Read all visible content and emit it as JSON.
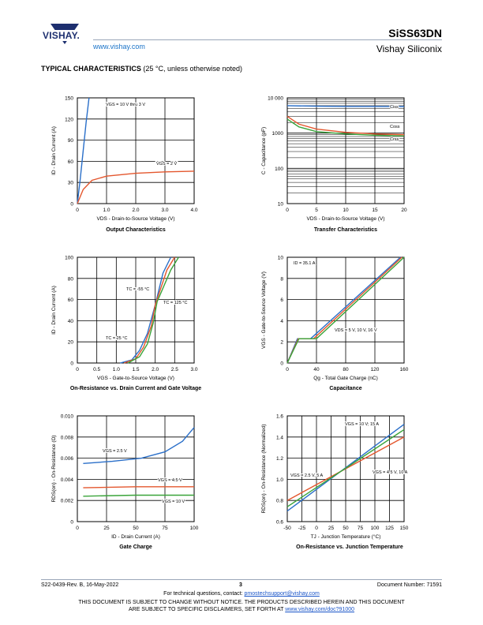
{
  "header": {
    "brand": "VISHAY.",
    "url": "www.vishay.com",
    "part_number": "SiSS63DN",
    "company": "Vishay Siliconix"
  },
  "section": {
    "title": "TYPICAL CHARACTERISTICS",
    "subtitle": "(25 °C, unless otherwise noted)"
  },
  "colors": {
    "blue": "#2a6fc9",
    "red": "#e4572e",
    "green": "#3aa43a",
    "orange": "#f0a030"
  },
  "charts": [
    {
      "id": "c1",
      "caption": "Output Characteristics",
      "xticks": [
        "0",
        "1.0",
        "2.0",
        "3.0",
        "4.0"
      ],
      "yticks": [
        "0",
        "30",
        "60",
        "90",
        "120",
        "150"
      ],
      "xlabel": "VDS - Drain-to-Source Voltage (V)",
      "ylabel": "ID - Drain Current (A)",
      "annotations": [
        "VGS = 10 V thru 3 V",
        "VGS = 2 V"
      ]
    },
    {
      "id": "c2",
      "caption": "Transfer Characteristics",
      "xticks": [
        "0",
        "5",
        "10",
        "15",
        "20"
      ],
      "yticks": [
        "10",
        "100",
        "1000",
        "10 000"
      ],
      "xlabel": "VDS - Drain-to-Source Voltage (V)",
      "ylabel": "C - Capacitance (pF)",
      "annotations": [
        "Ciss",
        "Coss",
        "Crss"
      ]
    },
    {
      "id": "c3",
      "caption": "On-Resistance vs. Drain Current and Gate Voltage",
      "xticks": [
        "0",
        "0.5",
        "1.0",
        "1.5",
        "2.0",
        "2.5",
        "3.0"
      ],
      "yticks": [
        "0",
        "20",
        "40",
        "60",
        "80",
        "100"
      ],
      "xlabel": "VGS - Gate-to-Source Voltage (V)",
      "ylabel": "ID - Drain Current (A)",
      "annotations": [
        "TC = -55 °C",
        "TC = 125 °C",
        "TC = 25 °C"
      ]
    },
    {
      "id": "c4",
      "caption": "Capacitance",
      "xticks": [
        "0",
        "40",
        "80",
        "120",
        "160"
      ],
      "yticks": [
        "0",
        "2",
        "4",
        "6",
        "8",
        "10"
      ],
      "xlabel": "Qg - Total Gate Charge (nC)",
      "ylabel": "VGS - Gate-to-Source Voltage (V)",
      "annotations": [
        "ID = 35.1 A",
        "VDS = 5 V, 10 V, 16 V"
      ]
    },
    {
      "id": "c5",
      "caption": "Gate Charge",
      "xticks": [
        "0",
        "25",
        "50",
        "75",
        "100"
      ],
      "yticks": [
        "0",
        "0.002",
        "0.004",
        "0.006",
        "0.008",
        "0.010"
      ],
      "xlabel": "ID - Drain Current (A)",
      "ylabel": "RDS(on) - On-Resistance (Ω)",
      "annotations": [
        "VGS = 2.5 V",
        "VGS = 4.5 V",
        "VGS = 10 V"
      ]
    },
    {
      "id": "c6",
      "caption": "On-Resistance vs. Junction Temperature",
      "xticks": [
        "-50",
        "-25",
        "0",
        "25",
        "50",
        "75",
        "100",
        "125",
        "150"
      ],
      "yticks": [
        "0.6",
        "0.8",
        "1.0",
        "1.2",
        "1.4",
        "1.6"
      ],
      "xlabel": "TJ - Junction Temperature (°C)",
      "ylabel": "RDS(on) - On-Resistance (Normalized)",
      "annotations": [
        "VGS = 10 V; 15 A",
        "VGS = 2.5 V, 5 A",
        "VGS = 4.5 V, 10 A"
      ]
    }
  ],
  "chart_data": [
    {
      "type": "line",
      "title": "Output Characteristics",
      "xlim": [
        0,
        4
      ],
      "ylim": [
        0,
        150
      ],
      "series": [
        {
          "name": "VGS = 10 V thru 3 V",
          "x": [
            0,
            0.1,
            0.2,
            0.3,
            0.4
          ],
          "y": [
            0,
            35,
            75,
            115,
            150
          ]
        },
        {
          "name": "VGS = 2 V",
          "x": [
            0,
            0.2,
            0.5,
            1,
            2,
            3,
            4
          ],
          "y": [
            0,
            20,
            33,
            39,
            43,
            45,
            46
          ]
        }
      ]
    },
    {
      "type": "line",
      "title": "Transfer Characteristics",
      "xlim": [
        0,
        20
      ],
      "ylim": [
        10,
        10000
      ],
      "log_y": true,
      "series": [
        {
          "name": "Ciss",
          "x": [
            0,
            5,
            10,
            15,
            20
          ],
          "y": [
            6000,
            5800,
            5700,
            5700,
            5650
          ]
        },
        {
          "name": "Coss",
          "x": [
            0,
            2,
            5,
            10,
            15,
            20
          ],
          "y": [
            3000,
            1800,
            1300,
            1050,
            950,
            900
          ]
        },
        {
          "name": "Crss",
          "x": [
            0,
            2,
            5,
            10,
            15,
            20
          ],
          "y": [
            2500,
            1500,
            1100,
            950,
            870,
            830
          ]
        }
      ]
    },
    {
      "type": "line",
      "title": "On-Resistance vs. Drain Current and Gate Voltage",
      "xlim": [
        0,
        3
      ],
      "ylim": [
        0,
        100
      ],
      "series": [
        {
          "name": "TC = -55 °C",
          "x": [
            1.1,
            1.4,
            1.6,
            1.8,
            2.0,
            2.2,
            2.4
          ],
          "y": [
            0,
            3,
            12,
            28,
            55,
            85,
            100
          ]
        },
        {
          "name": "TC = 25 °C",
          "x": [
            1.2,
            1.5,
            1.7,
            1.9,
            2.0,
            2.3,
            2.5
          ],
          "y": [
            0,
            4,
            15,
            35,
            55,
            88,
            100
          ]
        },
        {
          "name": "TC = 125 °C",
          "x": [
            1.3,
            1.6,
            1.8,
            1.95,
            2.05,
            2.4,
            2.6
          ],
          "y": [
            0,
            6,
            18,
            38,
            58,
            88,
            100
          ]
        }
      ]
    },
    {
      "type": "line",
      "title": "Capacitance",
      "xlim": [
        0,
        160
      ],
      "ylim": [
        0,
        10
      ],
      "series": [
        {
          "name": "VDS = 5 V",
          "x": [
            0,
            14,
            32,
            155
          ],
          "y": [
            0,
            2.3,
            2.3,
            10
          ]
        },
        {
          "name": "VDS = 10 V",
          "x": [
            0,
            15,
            36,
            157
          ],
          "y": [
            0,
            2.3,
            2.3,
            10
          ]
        },
        {
          "name": "VDS = 16 V",
          "x": [
            0,
            16,
            40,
            160
          ],
          "y": [
            0,
            2.3,
            2.3,
            10
          ]
        }
      ]
    },
    {
      "type": "line",
      "title": "Gate Charge",
      "xlim": [
        0,
        100
      ],
      "ylim": [
        0,
        0.01
      ],
      "series": [
        {
          "name": "VGS = 2.5 V",
          "x": [
            5,
            30,
            55,
            75,
            90,
            100
          ],
          "y": [
            0.0055,
            0.0057,
            0.006,
            0.0066,
            0.0076,
            0.0089
          ]
        },
        {
          "name": "VGS = 4.5 V",
          "x": [
            5,
            50,
            100
          ],
          "y": [
            0.0032,
            0.0033,
            0.0033
          ]
        },
        {
          "name": "VGS = 10 V",
          "x": [
            5,
            50,
            100
          ],
          "y": [
            0.0024,
            0.0025,
            0.0025
          ]
        }
      ]
    },
    {
      "type": "line",
      "title": "On-Resistance vs. Junction Temperature",
      "xlim": [
        -50,
        150
      ],
      "ylim": [
        0.6,
        1.6
      ],
      "series": [
        {
          "name": "VGS = 10 V; 15 A",
          "x": [
            -50,
            150
          ],
          "y": [
            0.7,
            1.52
          ]
        },
        {
          "name": "VGS = 2.5 V, 5 A",
          "x": [
            -50,
            150
          ],
          "y": [
            0.8,
            1.4
          ]
        },
        {
          "name": "VGS = 4.5 V, 10 A",
          "x": [
            -50,
            150
          ],
          "y": [
            0.74,
            1.47
          ]
        }
      ]
    }
  ],
  "footer": {
    "doc_rev": "S22-0439-Rev. B, 16-May-2022",
    "page": "3",
    "doc_number": "Document Number: 71591",
    "questions_prefix": "For technical questions, contact: ",
    "questions_email": "pmostechsupport@vishay.com",
    "disclaimer_line1": "THIS DOCUMENT IS SUBJECT TO CHANGE WITHOUT NOTICE. THE PRODUCTS DESCRIBED HEREIN AND THIS DOCUMENT",
    "disclaimer_line2_prefix": "ARE SUBJECT TO SPECIFIC DISCLAIMERS, SET FORTH AT ",
    "disclaimer_link": "www.vishay.com/doc?91000"
  }
}
